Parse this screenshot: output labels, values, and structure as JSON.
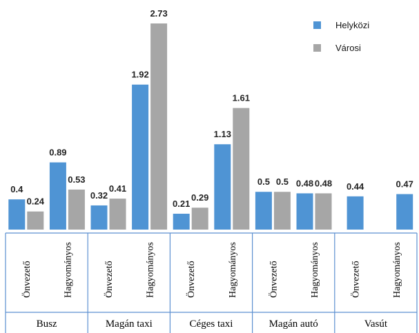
{
  "chart_data": {
    "type": "bar",
    "title": "",
    "xlabel": "",
    "ylabel": "",
    "ylim": [
      0,
      2.85
    ],
    "grid": false,
    "legend_placement": "top-right",
    "groups": [
      "Busz",
      "Magán taxi",
      "Céges taxi",
      "Magán autó",
      "Vasút"
    ],
    "subcategories": [
      "Önvezető",
      "Hagyományos"
    ],
    "series": [
      {
        "name": "Helyközi",
        "color": "#4f94d4",
        "values": [
          0.4,
          0.89,
          0.32,
          1.92,
          0.21,
          1.13,
          0.5,
          0.48,
          0.44,
          0.47
        ]
      },
      {
        "name": "Városi",
        "color": "#a6a6a6",
        "values": [
          0.24,
          0.53,
          0.41,
          2.73,
          0.29,
          1.61,
          0.5,
          0.48,
          null,
          null
        ]
      }
    ],
    "data_labels": [
      [
        "0.4",
        "0.89",
        "0.32",
        "1.92",
        "0.21",
        "1.13",
        "0.5",
        "0.48",
        "0.44",
        "0.47"
      ],
      [
        "0.24",
        "0.53",
        "0.41",
        "2.73",
        "0.29",
        "1.61",
        "0.5",
        "0.48",
        null,
        null
      ]
    ]
  }
}
